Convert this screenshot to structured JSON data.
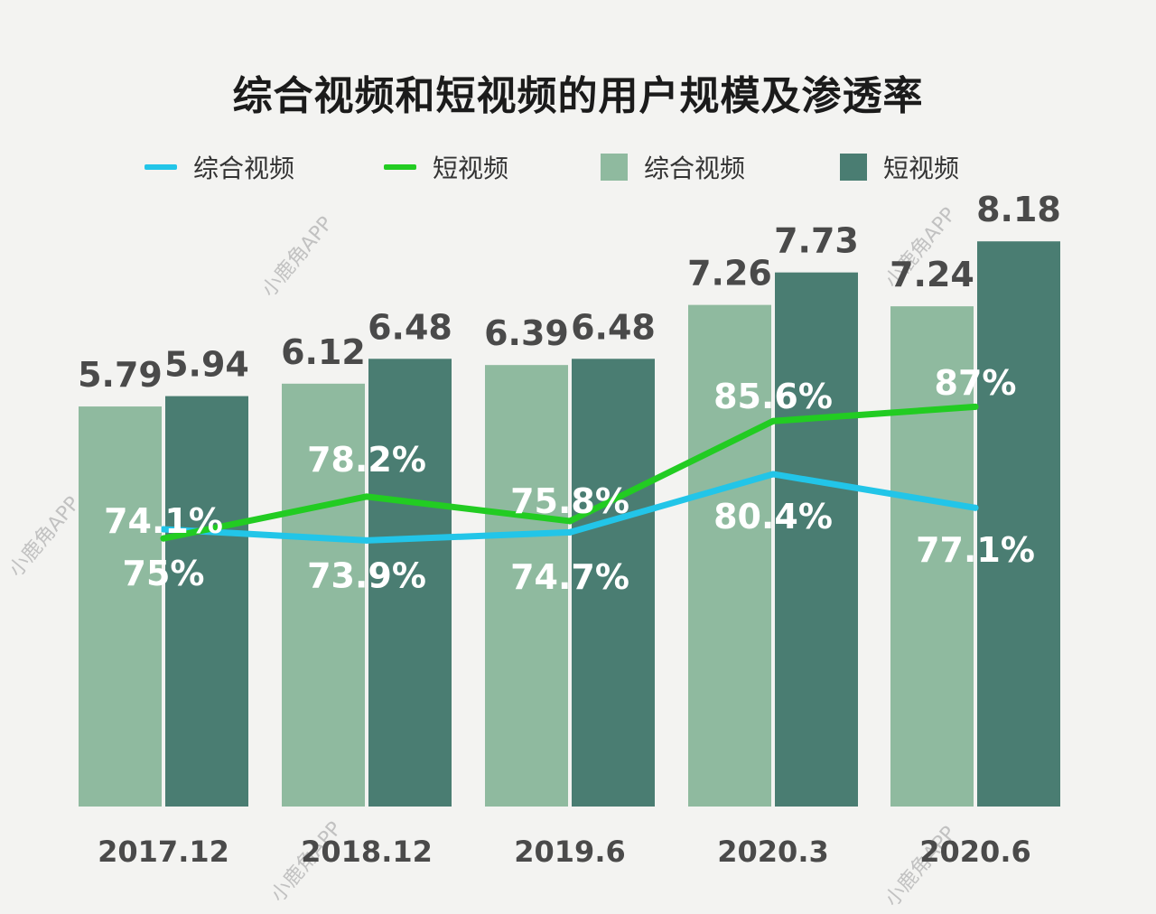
{
  "chart_data": {
    "type": "bar",
    "title": "综合视频和短视频的用户规模及渗透率",
    "categories": [
      "2017.12",
      "2018.12",
      "2019.6",
      "2020.3",
      "2020.6"
    ],
    "series": [
      {
        "name": "综合视频",
        "kind": "bar",
        "values": [
          5.79,
          6.12,
          6.39,
          7.26,
          7.24
        ],
        "labels": [
          "5.79",
          "6.12",
          "6.39",
          "7.26",
          "7.24"
        ],
        "color": "#8fba9f"
      },
      {
        "name": "短视频",
        "kind": "bar",
        "values": [
          5.94,
          6.48,
          6.48,
          7.73,
          8.18
        ],
        "labels": [
          "5.94",
          "6.48",
          "6.48",
          "7.73",
          "8.18"
        ],
        "color": "#4a7d72"
      },
      {
        "name": "综合视频",
        "kind": "line",
        "values": [
          75.0,
          73.9,
          74.7,
          80.4,
          77.1
        ],
        "labels": [
          "75%",
          "73.9%",
          "74.7%",
          "80.4%",
          "77.1%"
        ],
        "color": "#22c5e8"
      },
      {
        "name": "短视频",
        "kind": "line",
        "values": [
          74.1,
          78.2,
          75.8,
          85.6,
          87.0
        ],
        "labels": [
          "74.1%",
          "78.2%",
          "75.8%",
          "85.6%",
          "87%"
        ],
        "color": "#22cc22"
      }
    ],
    "legend_position": "top",
    "grid": false
  },
  "watermark": "小鹿角APP"
}
